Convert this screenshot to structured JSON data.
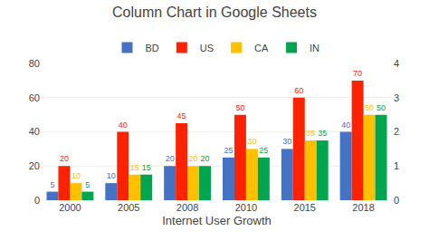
{
  "chart_data": {
    "type": "bar",
    "title": "Column Chart in Google Sheets",
    "x_label": "Internet User Growth",
    "categories": [
      "2000",
      "2005",
      "2008",
      "2010",
      "2015",
      "2018"
    ],
    "series": [
      {
        "name": "BD",
        "color": "#4472C4",
        "values": [
          5,
          10,
          20,
          25,
          30,
          40
        ]
      },
      {
        "name": "US",
        "color": "#FF2200",
        "values": [
          20,
          40,
          45,
          50,
          60,
          70
        ]
      },
      {
        "name": "CA",
        "color": "#FFC000",
        "values": [
          10,
          15,
          20,
          30,
          35,
          50
        ]
      },
      {
        "name": "IN",
        "color": "#00A550",
        "values": [
          5,
          15,
          20,
          25,
          35,
          50
        ]
      }
    ],
    "ylim": [
      0,
      80
    ],
    "yticks": [
      0,
      20,
      40,
      60,
      80
    ],
    "y2lim": [
      0,
      4
    ],
    "y2ticks": [
      0,
      1,
      2,
      3,
      4
    ],
    "grid": true,
    "data_labels": true,
    "legend": "top"
  }
}
